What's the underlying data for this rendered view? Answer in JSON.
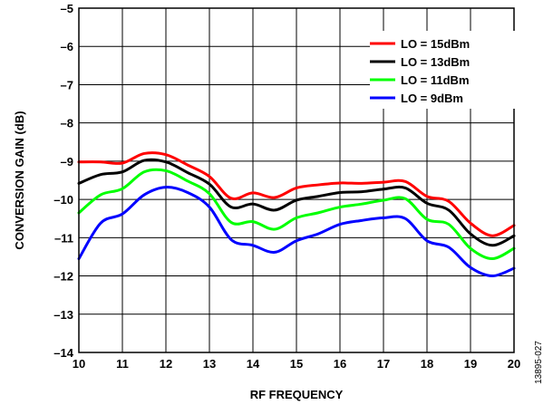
{
  "figure_id": "13895-027",
  "chart_data": {
    "type": "line",
    "title": "",
    "xlabel": "RF FREQUENCY",
    "ylabel": "CONVERSION GAIN (dB)",
    "xlim": [
      10,
      20
    ],
    "ylim": [
      -14,
      -5
    ],
    "x_ticks": [
      10,
      11,
      12,
      13,
      14,
      15,
      16,
      17,
      18,
      19,
      20
    ],
    "y_ticks": [
      -14,
      -13,
      -12,
      -11,
      -10,
      -9,
      -8,
      -7,
      -6,
      -5
    ],
    "x_tick_labels": [
      "10",
      "11",
      "12",
      "13",
      "14",
      "15",
      "16",
      "17",
      "18",
      "19",
      "20"
    ],
    "y_tick_labels": [
      "–14",
      "–13",
      "–12",
      "–11",
      "–10",
      "–9",
      "–8",
      "–7",
      "–6",
      "–5"
    ],
    "grid": true,
    "legend_position": "top-right",
    "x": [
      10,
      10.5,
      11,
      11.5,
      12,
      12.5,
      13,
      13.5,
      14,
      14.5,
      15,
      15.5,
      16,
      16.5,
      17,
      17.5,
      18,
      18.5,
      19,
      19.5,
      20
    ],
    "series": [
      {
        "name": "LO = 15dBm",
        "color": "#ff0000",
        "values": [
          -9.02,
          -9.02,
          -9.05,
          -8.8,
          -8.83,
          -9.1,
          -9.4,
          -9.97,
          -9.83,
          -9.95,
          -9.7,
          -9.62,
          -9.57,
          -9.58,
          -9.55,
          -9.53,
          -9.92,
          -10.05,
          -10.62,
          -10.95,
          -10.68
        ]
      },
      {
        "name": "LO = 13dBm",
        "color": "#000000",
        "values": [
          -9.58,
          -9.35,
          -9.28,
          -8.98,
          -9.02,
          -9.3,
          -9.6,
          -10.2,
          -10.12,
          -10.28,
          -10.02,
          -9.92,
          -9.82,
          -9.8,
          -9.73,
          -9.7,
          -10.1,
          -10.28,
          -10.9,
          -11.2,
          -10.95
        ]
      },
      {
        "name": "LO = 11dBm",
        "color": "#00ff00",
        "values": [
          -10.35,
          -9.88,
          -9.72,
          -9.28,
          -9.25,
          -9.52,
          -9.85,
          -10.6,
          -10.58,
          -10.78,
          -10.48,
          -10.35,
          -10.2,
          -10.12,
          -10.02,
          -9.98,
          -10.52,
          -10.65,
          -11.28,
          -11.55,
          -11.28
        ]
      },
      {
        "name": "LO = 9dBm",
        "color": "#0000ff",
        "values": [
          -11.55,
          -10.62,
          -10.38,
          -9.88,
          -9.68,
          -9.82,
          -10.2,
          -11.05,
          -11.2,
          -11.38,
          -11.08,
          -10.9,
          -10.65,
          -10.55,
          -10.48,
          -10.5,
          -11.08,
          -11.25,
          -11.78,
          -12.0,
          -11.8
        ]
      }
    ]
  }
}
